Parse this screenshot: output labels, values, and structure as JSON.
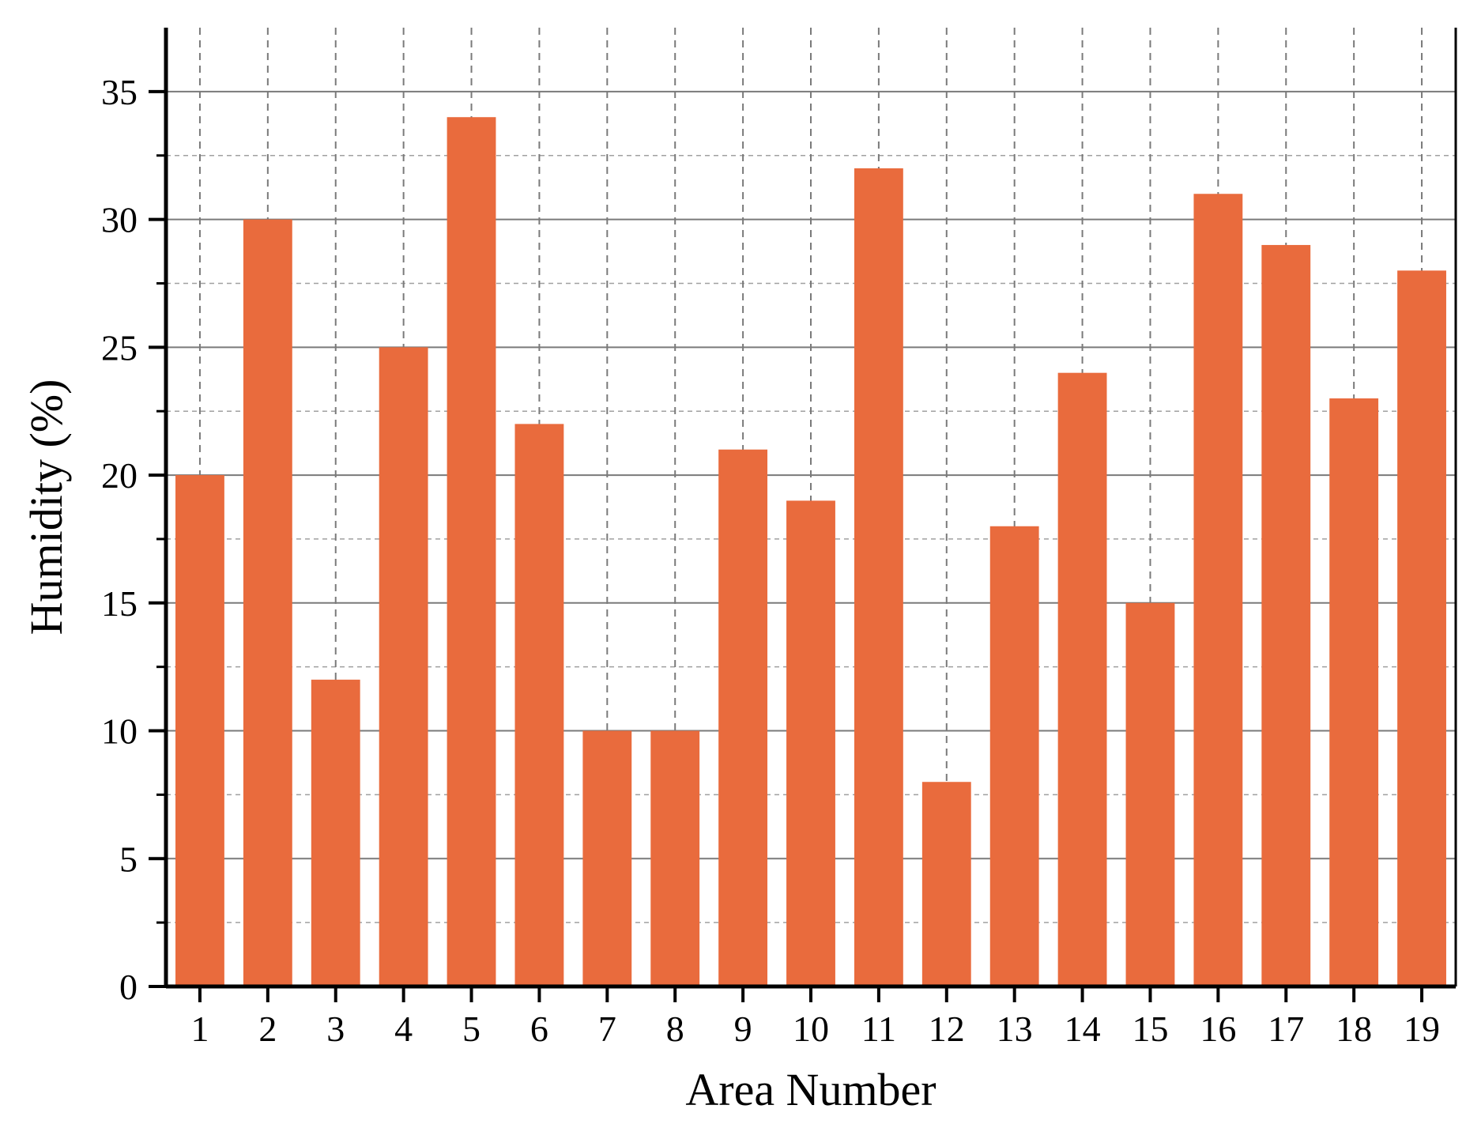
{
  "chart_data": {
    "type": "bar",
    "categories": [
      "1",
      "2",
      "3",
      "4",
      "5",
      "6",
      "7",
      "8",
      "9",
      "10",
      "11",
      "12",
      "13",
      "14",
      "15",
      "16",
      "17",
      "18",
      "19"
    ],
    "values": [
      20,
      30,
      12,
      25,
      34,
      22,
      10,
      10,
      21,
      19,
      32,
      8,
      18,
      24,
      15,
      31,
      29,
      23,
      28
    ],
    "xlabel": "Area Number",
    "ylabel": "Humidity (%)",
    "ylim": [
      0,
      37.5
    ],
    "yticks": [
      0,
      5,
      10,
      15,
      20,
      25,
      30,
      35
    ],
    "ytick_labels": [
      "0",
      "5",
      "10",
      "15",
      "20",
      "25",
      "30",
      "35"
    ],
    "grid": true,
    "bar_color": "#E96B3D"
  }
}
